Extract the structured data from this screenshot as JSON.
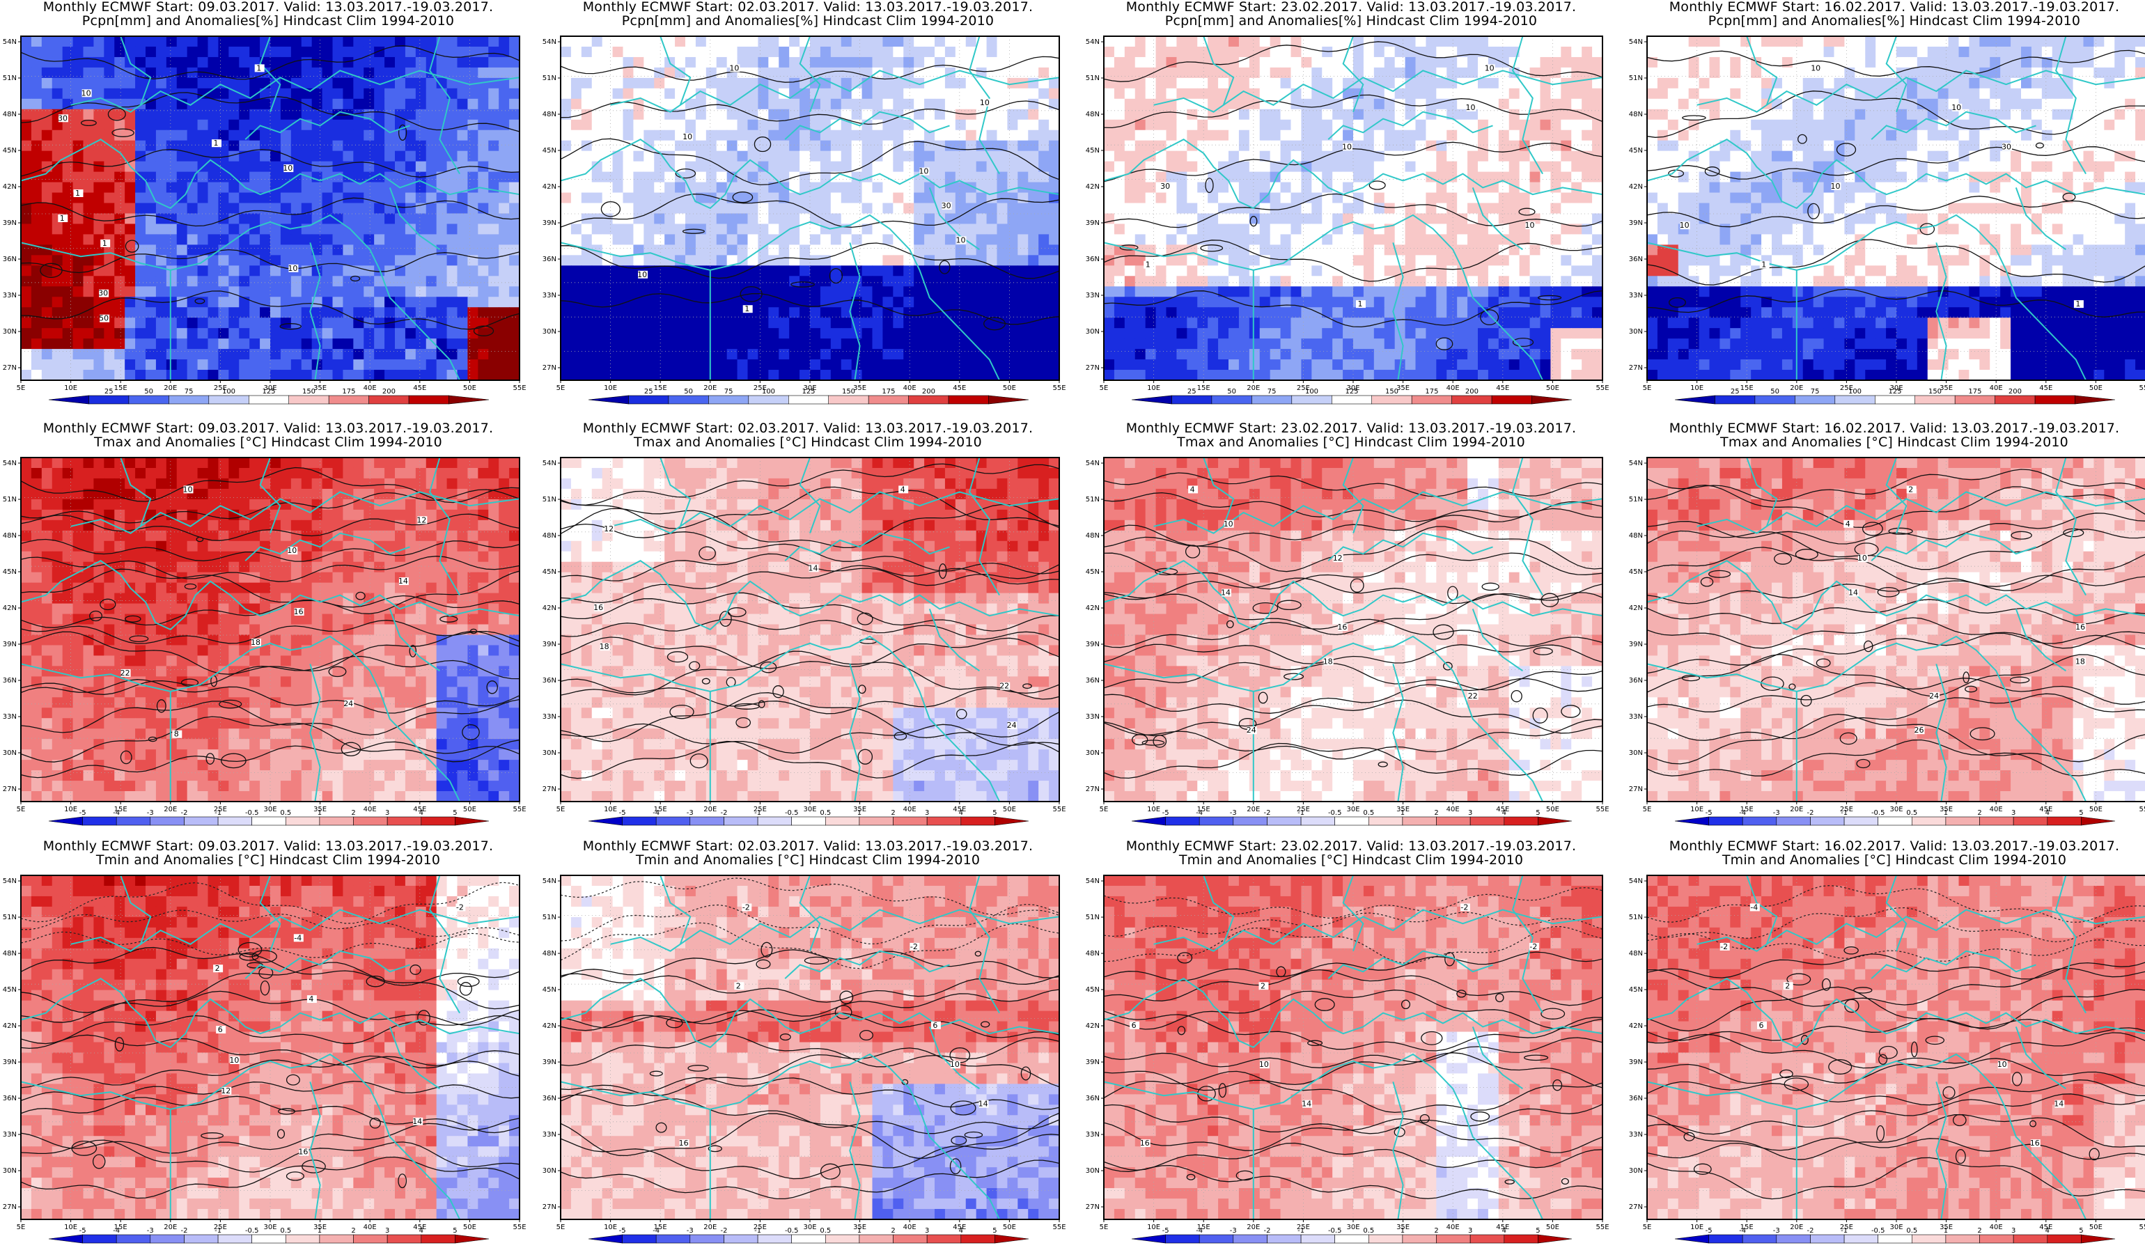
{
  "panels": [
    {
      "row": 0,
      "col": 0,
      "title_line1": "Monthly ECMWF Start: 09.03.2017. Valid: 13.03.2017.-19.03.2017.",
      "title_line2": "Pcpn[mm] and Anomalies[%] Hindcast Clim 1994-2010",
      "variable": "precipitation",
      "colorbar_labels": [
        "25",
        "50",
        "75",
        "100",
        "125",
        "150",
        "175",
        "200"
      ],
      "contour_labels": [
        "1",
        "10",
        "30",
        "1",
        "10",
        "1",
        "1",
        "1",
        "10",
        "30",
        "50"
      ]
    },
    {
      "row": 0,
      "col": 1,
      "title_line1": "Monthly ECMWF Start: 02.03.2017. Valid: 13.03.2017.-19.03.2017.",
      "title_line2": "Pcpn[mm] and Anomalies[%] Hindcast Clim 1994-2010",
      "variable": "precipitation",
      "colorbar_labels": [
        "25",
        "50",
        "75",
        "100",
        "125",
        "150",
        "175",
        "200"
      ],
      "contour_labels": [
        "10",
        "10",
        "10",
        "10",
        "30",
        "10",
        "10",
        "1"
      ]
    },
    {
      "row": 0,
      "col": 2,
      "title_line1": "Monthly ECMWF Start: 23.02.2017. Valid: 13.03.2017.-19.03.2017.",
      "title_line2": "Pcpn[mm] and Anomalies[%] Hindcast Clim 1994-2010",
      "variable": "precipitation",
      "colorbar_labels": [
        "25",
        "50",
        "75",
        "100",
        "125",
        "150",
        "175",
        "200"
      ],
      "contour_labels": [
        "10",
        "10",
        "10",
        "30",
        "10",
        "1",
        "1"
      ]
    },
    {
      "row": 0,
      "col": 3,
      "title_line1": "Monthly ECMWF Start: 16.02.2017. Valid: 13.03.2017.-19.03.2017.",
      "title_line2": "Pcpn[mm] and Anomalies[%] Hindcast Clim 1994-2010",
      "variable": "precipitation",
      "colorbar_labels": [
        "25",
        "50",
        "75",
        "100",
        "125",
        "150",
        "175",
        "200"
      ],
      "contour_labels": [
        "10",
        "10",
        "30",
        "10",
        "10",
        "1",
        "1"
      ]
    },
    {
      "row": 1,
      "col": 0,
      "title_line1": "Monthly ECMWF Start: 09.03.2017. Valid: 13.03.2017.-19.03.2017.",
      "title_line2": "Tmax and Anomalies [°C] Hindcast Clim 1994-2010",
      "variable": "tmax",
      "colorbar_labels": [
        "-5",
        "-4",
        "-3",
        "-2",
        "-1",
        "-0.5",
        "0.5",
        "1",
        "2",
        "3",
        "4",
        "5"
      ],
      "contour_labels": [
        "10",
        "12",
        "10",
        "14",
        "16",
        "18",
        "22",
        "24",
        "8"
      ]
    },
    {
      "row": 1,
      "col": 1,
      "title_line1": "Monthly ECMWF Start: 02.03.2017. Valid: 13.03.2017.-19.03.2017.",
      "title_line2": "Tmax and Anomalies [°C] Hindcast Clim 1994-2010",
      "variable": "tmax",
      "colorbar_labels": [
        "-5",
        "-4",
        "-3",
        "-2",
        "-1",
        "-0.5",
        "0.5",
        "1",
        "2",
        "3",
        "4",
        "5"
      ],
      "contour_labels": [
        "4",
        "12",
        "14",
        "16",
        "18",
        "22",
        "24"
      ]
    },
    {
      "row": 1,
      "col": 2,
      "title_line1": "Monthly ECMWF Start: 23.02.2017. Valid: 13.03.2017.-19.03.2017.",
      "title_line2": "Tmax and Anomalies [°C] Hindcast Clim 1994-2010",
      "variable": "tmax",
      "colorbar_labels": [
        "-5",
        "-4",
        "-3",
        "-2",
        "-1",
        "-0.5",
        "0.5",
        "1",
        "2",
        "3",
        "4",
        "5"
      ],
      "contour_labels": [
        "4",
        "10",
        "12",
        "14",
        "16",
        "18",
        "22",
        "24"
      ]
    },
    {
      "row": 1,
      "col": 3,
      "title_line1": "Monthly ECMWF Start: 16.02.2017. Valid: 13.03.2017.-19.03.2017.",
      "title_line2": "Tmax and Anomalies [°C] Hindcast Clim 1994-2010",
      "variable": "tmax",
      "colorbar_labels": [
        "-5",
        "-4",
        "-3",
        "-2",
        "-1",
        "-0.5",
        "0.5",
        "1",
        "2",
        "3",
        "4",
        "5"
      ],
      "contour_labels": [
        "2",
        "4",
        "10",
        "14",
        "16",
        "18",
        "24",
        "26"
      ]
    },
    {
      "row": 2,
      "col": 0,
      "title_line1": "Monthly ECMWF Start: 09.03.2017. Valid: 13.03.2017.-19.03.2017.",
      "title_line2": "Tmin and Anomalies [°C] Hindcast Clim 1994-2010",
      "variable": "tmin",
      "colorbar_labels": [
        "-5",
        "-4",
        "-3",
        "-2",
        "-1",
        "-0.5",
        "0.5",
        "1",
        "2",
        "3",
        "4",
        "5"
      ],
      "contour_labels": [
        "-2",
        "-4",
        "2",
        "4",
        "6",
        "10",
        "12",
        "14",
        "16"
      ]
    },
    {
      "row": 2,
      "col": 1,
      "title_line1": "Monthly ECMWF Start: 02.03.2017. Valid: 13.03.2017.-19.03.2017.",
      "title_line2": "Tmin and Anomalies [°C] Hindcast Clim 1994-2010",
      "variable": "tmin",
      "colorbar_labels": [
        "-5",
        "-4",
        "-3",
        "-2",
        "-1",
        "-0.5",
        "0.5",
        "1",
        "2",
        "3",
        "4",
        "5"
      ],
      "contour_labels": [
        "-2",
        "-2",
        "2",
        "6",
        "10",
        "14",
        "16"
      ]
    },
    {
      "row": 2,
      "col": 2,
      "title_line1": "Monthly ECMWF Start: 23.02.2017. Valid: 13.03.2017.-19.03.2017.",
      "title_line2": "Tmin and Anomalies [°C] Hindcast Clim 1994-2010",
      "variable": "tmin",
      "colorbar_labels": [
        "-5",
        "-4",
        "-3",
        "-2",
        "-1",
        "-0.5",
        "0.5",
        "1",
        "2",
        "3",
        "4",
        "5"
      ],
      "contour_labels": [
        "-2",
        "-2",
        "2",
        "6",
        "10",
        "14",
        "16"
      ]
    },
    {
      "row": 2,
      "col": 3,
      "title_line1": "Monthly ECMWF Start: 16.02.2017. Valid: 13.03.2017.-19.03.2017.",
      "title_line2": "Tmin and Anomalies [°C] Hindcast Clim 1994-2010",
      "variable": "tmin",
      "colorbar_labels": [
        "-5",
        "-4",
        "-3",
        "-2",
        "-1",
        "-0.5",
        "0.5",
        "1",
        "2",
        "3",
        "4",
        "5"
      ],
      "contour_labels": [
        "-4",
        "-2",
        "2",
        "6",
        "10",
        "14",
        "16"
      ]
    }
  ],
  "axes": {
    "lon_labels": [
      "5E",
      "10E",
      "15E",
      "20E",
      "25E",
      "30E",
      "35E",
      "40E",
      "45E",
      "50E",
      "55E"
    ],
    "lat_labels": [
      "27N",
      "30N",
      "33N",
      "36N",
      "39N",
      "42N",
      "45N",
      "48N",
      "51N",
      "54N"
    ]
  },
  "colors": {
    "precip_scale": [
      "#0000aa",
      "#1a2ee0",
      "#4a66f0",
      "#8ea6f5",
      "#c6d0f8",
      "#ffffff",
      "#f8c8c8",
      "#f08c8c",
      "#e04040",
      "#c00000",
      "#8a0000"
    ],
    "temp_scale": [
      "#0000c8",
      "#2030e8",
      "#5060f0",
      "#8890f4",
      "#b8bcf8",
      "#dcdcfa",
      "#ffffff",
      "#fadada",
      "#f4b0b0",
      "#f08080",
      "#e85050",
      "#d82020",
      "#b00000"
    ],
    "coastline": "#30c8c8",
    "contour": "#111111"
  }
}
